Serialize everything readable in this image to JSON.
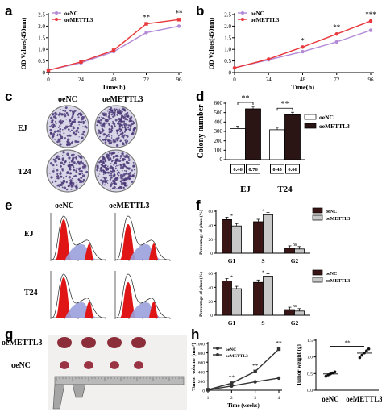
{
  "panels": {
    "a": "a",
    "b": "b",
    "c": "c",
    "d": "d",
    "e": "e",
    "f": "f",
    "g": "g",
    "h": "h"
  },
  "photo_labels": {
    "c": {
      "col_oeNC": "oeNC",
      "col_oeMETTL3": "oeMETTL3",
      "row_EJ": "EJ",
      "row_T24": "T24"
    },
    "e": {
      "col_oeNC": "oeNC",
      "col_oeMETTL3": "oeMETTL3",
      "row_EJ": "EJ",
      "row_T24": "T24"
    },
    "g": {
      "row_oeMETTL3": "oeMETTL3",
      "row_oeNC": "oeNC"
    }
  },
  "colors": {
    "oeNC_line": "#b38ad6",
    "oeMETTL3_line": "#e8373b",
    "bar_oeNC": "#ffffff",
    "bar_oeMETTL3": "#2a1414",
    "f_oeNC": "#3a1515",
    "f_oeMETTL3": "#c8c8c8",
    "dish_bg": "#d9d6e8",
    "colony": "#4b3a78"
  },
  "chart_data": [
    {
      "id": "a",
      "type": "line",
      "x": [
        0,
        24,
        48,
        72,
        96
      ],
      "xlabel": "Time(h)",
      "ylabel": "OD Values(450nm)",
      "ylim": [
        0,
        2.5
      ],
      "yticks": [
        "0",
        "0.5",
        "1.0",
        "1.5",
        "2.0",
        "2.5"
      ],
      "series": [
        {
          "name": "oeNC",
          "values": [
            0.1,
            0.42,
            0.9,
            1.72,
            2.0
          ]
        },
        {
          "name": "oeMETTL3",
          "values": [
            0.1,
            0.46,
            0.96,
            2.1,
            2.28
          ]
        }
      ],
      "annotations": [
        {
          "x": 72,
          "text": "**"
        },
        {
          "x": 96,
          "text": "**"
        }
      ]
    },
    {
      "id": "b",
      "type": "line",
      "x": [
        0,
        24,
        48,
        72,
        96
      ],
      "xlabel": "Time(h)",
      "ylabel": "OD Values(450nm)",
      "ylim": [
        0,
        2.5
      ],
      "yticks": [
        "0",
        "0.5",
        "1.0",
        "1.5",
        "2.0",
        "2.5"
      ],
      "series": [
        {
          "name": "oeNC",
          "values": [
            0.2,
            0.55,
            0.9,
            1.32,
            1.82
          ]
        },
        {
          "name": "oeMETTL3",
          "values": [
            0.2,
            0.58,
            1.1,
            1.66,
            2.22
          ]
        }
      ],
      "annotations": [
        {
          "x": 48,
          "text": "*"
        },
        {
          "x": 72,
          "text": "**"
        },
        {
          "x": 96,
          "text": "***"
        }
      ]
    },
    {
      "id": "d",
      "type": "bar",
      "categories": [
        "EJ",
        "T24"
      ],
      "ylabel": "Colony number",
      "ylim": [
        0,
        600
      ],
      "yticks": [
        "0",
        "100",
        "200",
        "300",
        "400",
        "500",
        "600"
      ],
      "series": [
        {
          "name": "oeNC",
          "values": [
            330,
            318
          ]
        },
        {
          "name": "oeMETTL3",
          "values": [
            540,
            478
          ]
        }
      ],
      "boxed_values": [
        [
          "0.46",
          "0.76"
        ],
        [
          "0.45",
          "0.66"
        ]
      ],
      "annotations": [
        "**",
        "**"
      ]
    },
    {
      "id": "f1",
      "type": "bar",
      "categories": [
        "G1",
        "S",
        "G2"
      ],
      "ylabel": "Percentage of phase(%)",
      "ylim": [
        0,
        60
      ],
      "yticks": [
        "0",
        "20",
        "40",
        "60"
      ],
      "series": [
        {
          "name": "oeNC",
          "values": [
            48,
            45,
            7
          ]
        },
        {
          "name": "oeMETTL3",
          "values": [
            39,
            55,
            6
          ]
        }
      ],
      "annotations": [
        "*",
        "*",
        "ns"
      ]
    },
    {
      "id": "f2",
      "type": "bar",
      "categories": [
        "G1",
        "S",
        "G2"
      ],
      "ylabel": "Percentage of phase(%)",
      "ylim": [
        0,
        60
      ],
      "yticks": [
        "0",
        "20",
        "40",
        "60"
      ],
      "series": [
        {
          "name": "oeNC",
          "values": [
            49,
            47,
            8
          ]
        },
        {
          "name": "oeMETTL3",
          "values": [
            38,
            56,
            6
          ]
        }
      ],
      "annotations": [
        "*",
        "*",
        "ns"
      ]
    },
    {
      "id": "h1",
      "type": "line",
      "x": [
        1,
        2,
        3,
        4
      ],
      "xlabel": "Time (weeks)",
      "ylabel": "Tumor volume (mm³)",
      "ylim": [
        0,
        1000
      ],
      "yticks": [
        "0",
        "200",
        "400",
        "600",
        "800",
        "1000"
      ],
      "series": [
        {
          "name": "oeNC",
          "values": [
            10,
            90,
            180,
            260
          ]
        },
        {
          "name": "oeMETTL3",
          "values": [
            10,
            150,
            400,
            880
          ]
        }
      ],
      "annotations": [
        {
          "x": 2,
          "text": "**"
        },
        {
          "x": 3,
          "text": "**"
        },
        {
          "x": 4,
          "text": "**"
        }
      ]
    },
    {
      "id": "h2",
      "type": "scatter",
      "categories": [
        "oeNC",
        "oeMETTL3"
      ],
      "ylabel": "Tumor weight (g)",
      "ylim": [
        0,
        1.5
      ],
      "yticks": [
        "0.0",
        "0.5",
        "1.0",
        "1.5"
      ],
      "series": [
        {
          "name": "oeNC",
          "values": [
            0.42,
            0.46,
            0.49,
            0.52,
            0.55
          ]
        },
        {
          "name": "oeMETTL3",
          "values": [
            0.98,
            1.05,
            1.12,
            1.18,
            1.24
          ]
        }
      ],
      "annotations": [
        "**"
      ]
    }
  ]
}
